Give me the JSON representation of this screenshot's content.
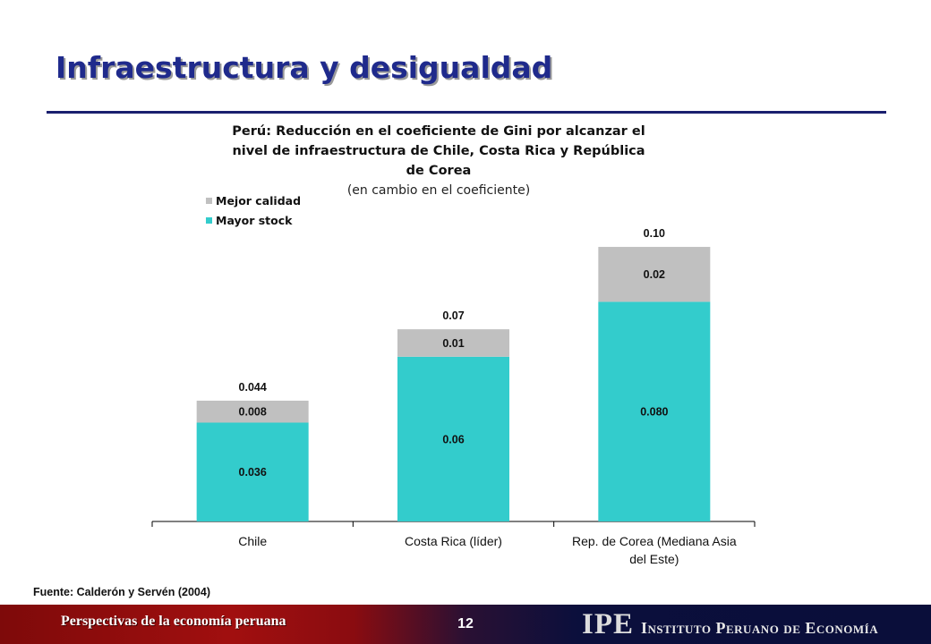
{
  "slide": {
    "title": "Infraestructura y desigualdad",
    "source": "Fuente: Calderón y Servén (2004)",
    "footer_left": "Perspectivas de la economía peruana",
    "page_number": "12",
    "logo_mark": "IPE",
    "logo_text": "Instituto Peruano de Economía"
  },
  "chart_data": {
    "type": "bar",
    "stacked": true,
    "title": "Perú: Reducción en el coeficiente de Gini por alcanzar el nivel de infraestructura de Chile, Costa Rica y República de Corea",
    "subtitle": "(en cambio en el coeficiente)",
    "categories": [
      "Chile",
      "Costa Rica (líder)",
      "Rep. de Corea (Mediana Asia del Este)"
    ],
    "series": [
      {
        "name": "Mayor stock",
        "color": "#33cccc",
        "values": [
          0.036,
          0.06,
          0.08
        ],
        "labels": [
          "0.036",
          "0.06",
          "0.080"
        ]
      },
      {
        "name": "Mejor calidad",
        "color": "#c0c0c0",
        "values": [
          0.008,
          0.01,
          0.02
        ],
        "labels": [
          "0.008",
          "0.01",
          "0.02"
        ]
      }
    ],
    "totals": [
      0.044,
      0.07,
      0.1
    ],
    "total_labels": [
      "0.044",
      "0.07",
      "0.10"
    ],
    "legend_order": [
      "Mejor calidad",
      "Mayor stock"
    ],
    "legend_position": "top-left",
    "ylim": [
      0,
      0.115
    ],
    "grid": false,
    "xlabel": "",
    "ylabel": ""
  }
}
